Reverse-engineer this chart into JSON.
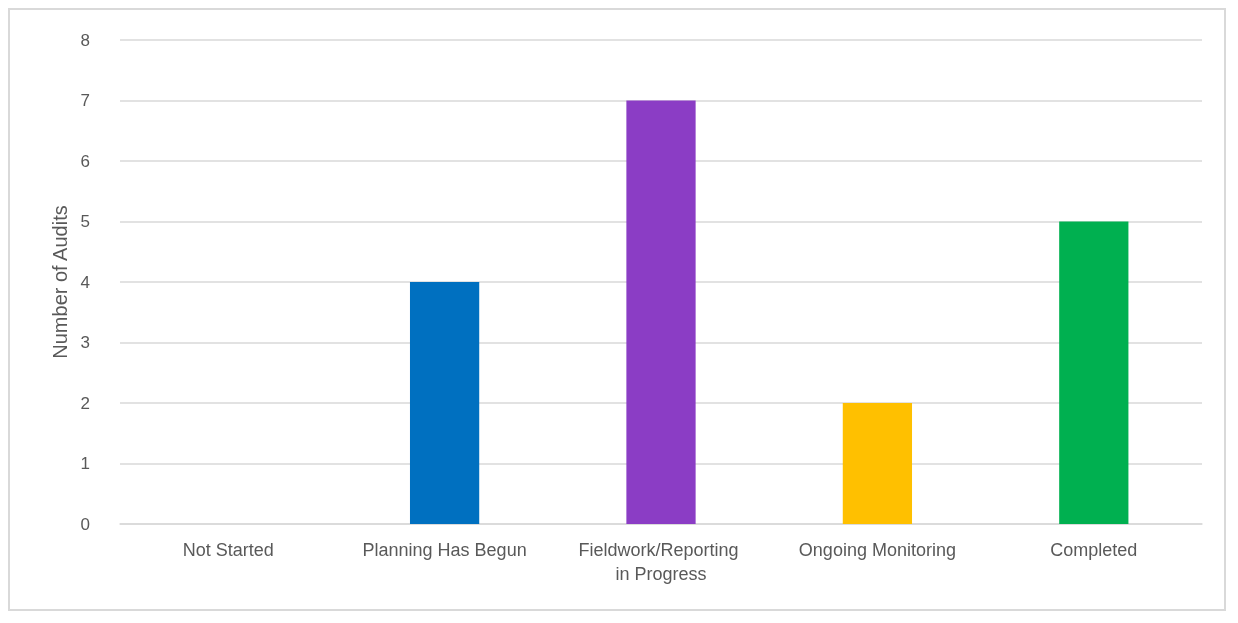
{
  "chart_data": {
    "type": "bar",
    "ylabel": "Number of Audits",
    "categories": [
      "Not Started",
      "Planning Has Begun",
      "Fieldwork/Reporting in Progress",
      "Ongoing Monitoring",
      "Completed"
    ],
    "values": [
      0,
      4,
      7,
      2,
      5
    ],
    "colors": [
      "#0070c0",
      "#0070c0",
      "#8b3dc5",
      "#ffc000",
      "#00b050"
    ],
    "ylim": [
      0,
      8
    ],
    "yticks": [
      0,
      1,
      2,
      3,
      4,
      5,
      6,
      7,
      8
    ],
    "grid": "y"
  }
}
